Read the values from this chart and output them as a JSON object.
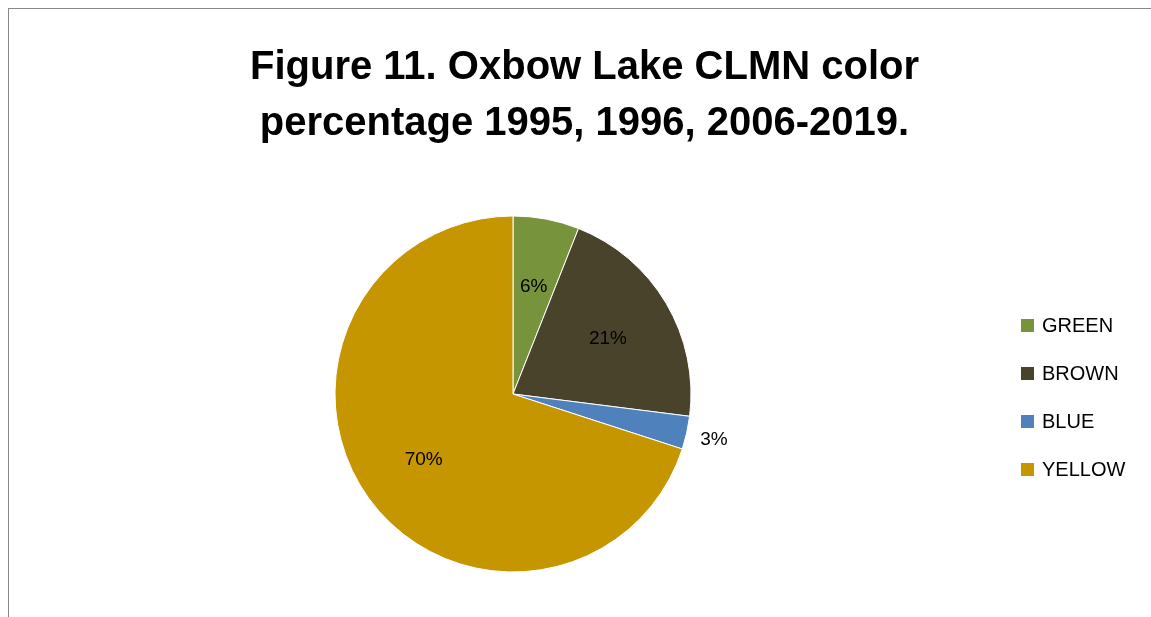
{
  "chart_data": {
    "type": "pie",
    "title": "Figure 11. Oxbow Lake CLMN color percentage 1995, 1996, 2006-2019.",
    "categories": [
      "GREEN",
      "BROWN",
      "BLUE",
      "YELLOW"
    ],
    "values": [
      6,
      21,
      3,
      70
    ],
    "colors": [
      "#77933c",
      "#4a432b",
      "#4f81bd",
      "#c59600"
    ],
    "value_labels": [
      "6%",
      "21%",
      "3%",
      "70%"
    ],
    "legend": "right"
  }
}
